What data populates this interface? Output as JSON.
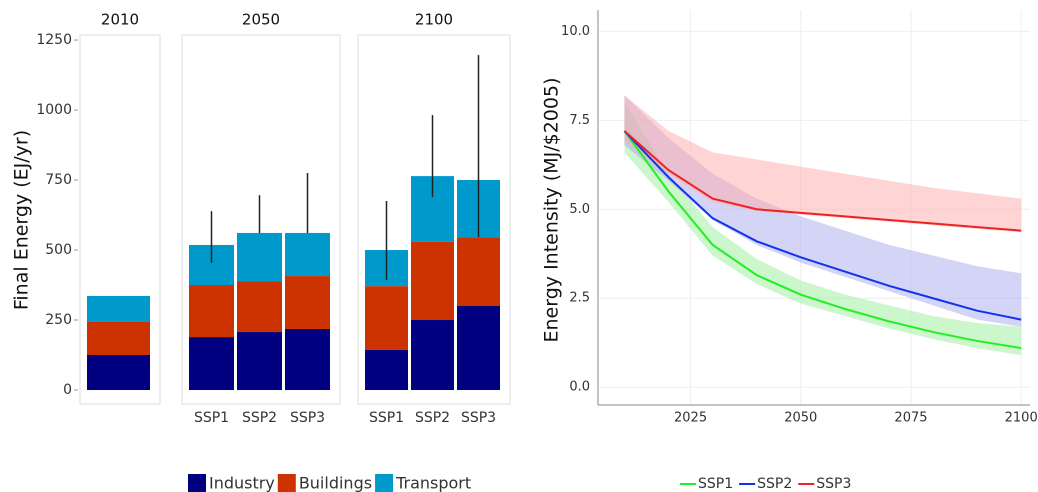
{
  "chart_data": [
    {
      "type": "facet-stacked-bar",
      "y_label": "Final Energy (EJ/yr)",
      "ylim": [
        -50,
        1268
      ],
      "yticks": [
        0,
        250,
        500,
        750,
        1000,
        1250
      ],
      "series": [
        {
          "name": "Industry",
          "color": "#000080"
        },
        {
          "name": "Buildings",
          "color": "#cc3300"
        },
        {
          "name": "Transport",
          "color": "#0099cc"
        }
      ],
      "facets": [
        {
          "title": "2010",
          "categories": [
            null
          ],
          "values": [
            [
              125
            ],
            [
              118
            ],
            [
              93
            ]
          ]
        },
        {
          "title": "2050",
          "categories": [
            "SSP1",
            "SSP2",
            "SSP3"
          ],
          "values": [
            [
              189,
              207,
              218
            ],
            [
              186,
              182,
              189
            ],
            [
              143,
              172,
              154
            ]
          ],
          "error_low": [
            454,
            561,
            561
          ],
          "error_high": [
            639,
            696,
            775
          ]
        },
        {
          "title": "2100",
          "categories": [
            "SSP1",
            "SSP2",
            "SSP3"
          ],
          "values": [
            [
              143,
              250,
              300
            ],
            [
              228,
              279,
              246
            ],
            [
              129,
              235,
              204
            ]
          ],
          "error_low": [
            393,
            689,
            546
          ],
          "error_high": [
            675,
            982,
            1196
          ]
        }
      ]
    },
    {
      "type": "line",
      "y_label": "Energy Intensity (MJ/$2005)",
      "x": [
        2010,
        2020,
        2030,
        2040,
        2050,
        2060,
        2070,
        2080,
        2090,
        2100
      ],
      "xlim": [
        2004,
        2102
      ],
      "xticks": [
        2025,
        2050,
        2075,
        2100
      ],
      "ylim": [
        -0.5,
        10.6
      ],
      "yticks": [
        {
          "value": 0,
          "label": "0.0"
        },
        2.5,
        {
          "value": 5,
          "label": "5.0"
        },
        7.5,
        {
          "value": 10,
          "label": "10.0"
        }
      ],
      "grid": true,
      "series": [
        {
          "name": "SSP1",
          "color": "#22ee22",
          "band_color": "#99ee99",
          "values": [
            7.2,
            5.5,
            4.0,
            3.15,
            2.6,
            2.2,
            1.85,
            1.55,
            1.3,
            1.1
          ],
          "low": [
            6.6,
            5.2,
            3.7,
            2.9,
            2.35,
            2.0,
            1.65,
            1.35,
            1.1,
            0.9
          ],
          "high": [
            8.0,
            6.0,
            4.5,
            3.6,
            3.0,
            2.6,
            2.3,
            2.0,
            1.8,
            1.7
          ]
        },
        {
          "name": "SSP2",
          "color": "#1133ee",
          "band_color": "#aaaaee",
          "values": [
            7.2,
            5.9,
            4.75,
            4.1,
            3.65,
            3.25,
            2.85,
            2.5,
            2.15,
            1.9
          ],
          "low": [
            6.8,
            5.8,
            4.7,
            4.0,
            3.5,
            3.1,
            2.7,
            2.3,
            1.9,
            1.7
          ],
          "high": [
            8.2,
            7.0,
            6.0,
            5.3,
            4.8,
            4.4,
            4.0,
            3.7,
            3.4,
            3.2
          ]
        },
        {
          "name": "SSP3",
          "color": "#ee2222",
          "band_color": "#ffaaaa",
          "values": [
            7.2,
            6.1,
            5.3,
            5.0,
            4.9,
            4.8,
            4.7,
            4.6,
            4.5,
            4.4
          ],
          "low": [
            6.9,
            6.0,
            5.2,
            4.95,
            4.85,
            4.75,
            4.65,
            4.55,
            4.45,
            4.35
          ],
          "high": [
            8.2,
            7.2,
            6.6,
            6.4,
            6.2,
            6.0,
            5.8,
            5.6,
            5.45,
            5.3
          ]
        }
      ]
    }
  ]
}
